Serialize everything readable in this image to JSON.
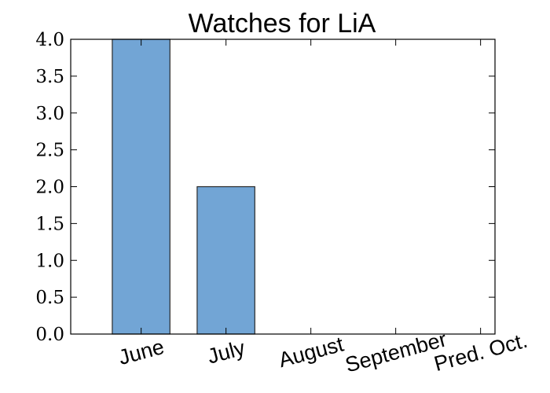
{
  "chart_data": {
    "type": "bar",
    "title": "Watches for LiA",
    "xlabel": "",
    "ylabel": "",
    "categories": [
      "June",
      "July",
      "August",
      "September",
      "Pred. Oct."
    ],
    "values": [
      4,
      2,
      0,
      0,
      0
    ],
    "ylim": [
      0,
      4
    ],
    "yticks": [
      "0.0",
      "0.5",
      "1.0",
      "1.5",
      "2.0",
      "2.5",
      "3.0",
      "3.5",
      "4.0"
    ],
    "x_tick_rotation": "rotated",
    "grid": false,
    "legend": "none",
    "bar_color": "#72a5d5"
  }
}
